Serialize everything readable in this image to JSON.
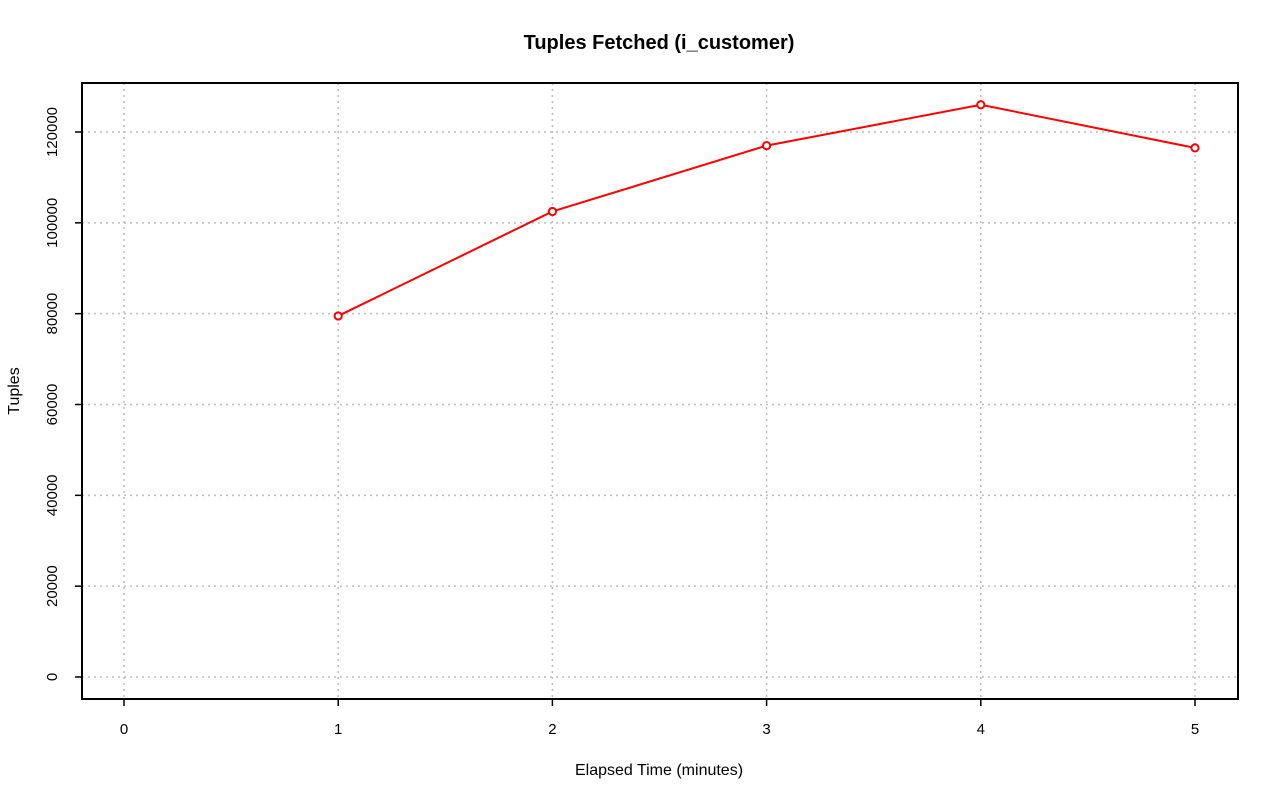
{
  "chart_data": {
    "type": "line",
    "title": "Tuples Fetched (i_customer)",
    "xlabel": "Elapsed Time (minutes)",
    "ylabel": "Tuples",
    "xlim": [
      0,
      5
    ],
    "ylim": [
      0,
      120000
    ],
    "x_ticks": [
      0,
      1,
      2,
      3,
      4,
      5
    ],
    "y_ticks": [
      0,
      20000,
      40000,
      60000,
      80000,
      100000,
      120000
    ],
    "grid": true,
    "series": [
      {
        "color": "#ff0000",
        "marker": "open-circle",
        "x": [
          1,
          2,
          3,
          4,
          5
        ],
        "y": [
          79500,
          102500,
          117000,
          126000,
          116500
        ]
      }
    ]
  }
}
